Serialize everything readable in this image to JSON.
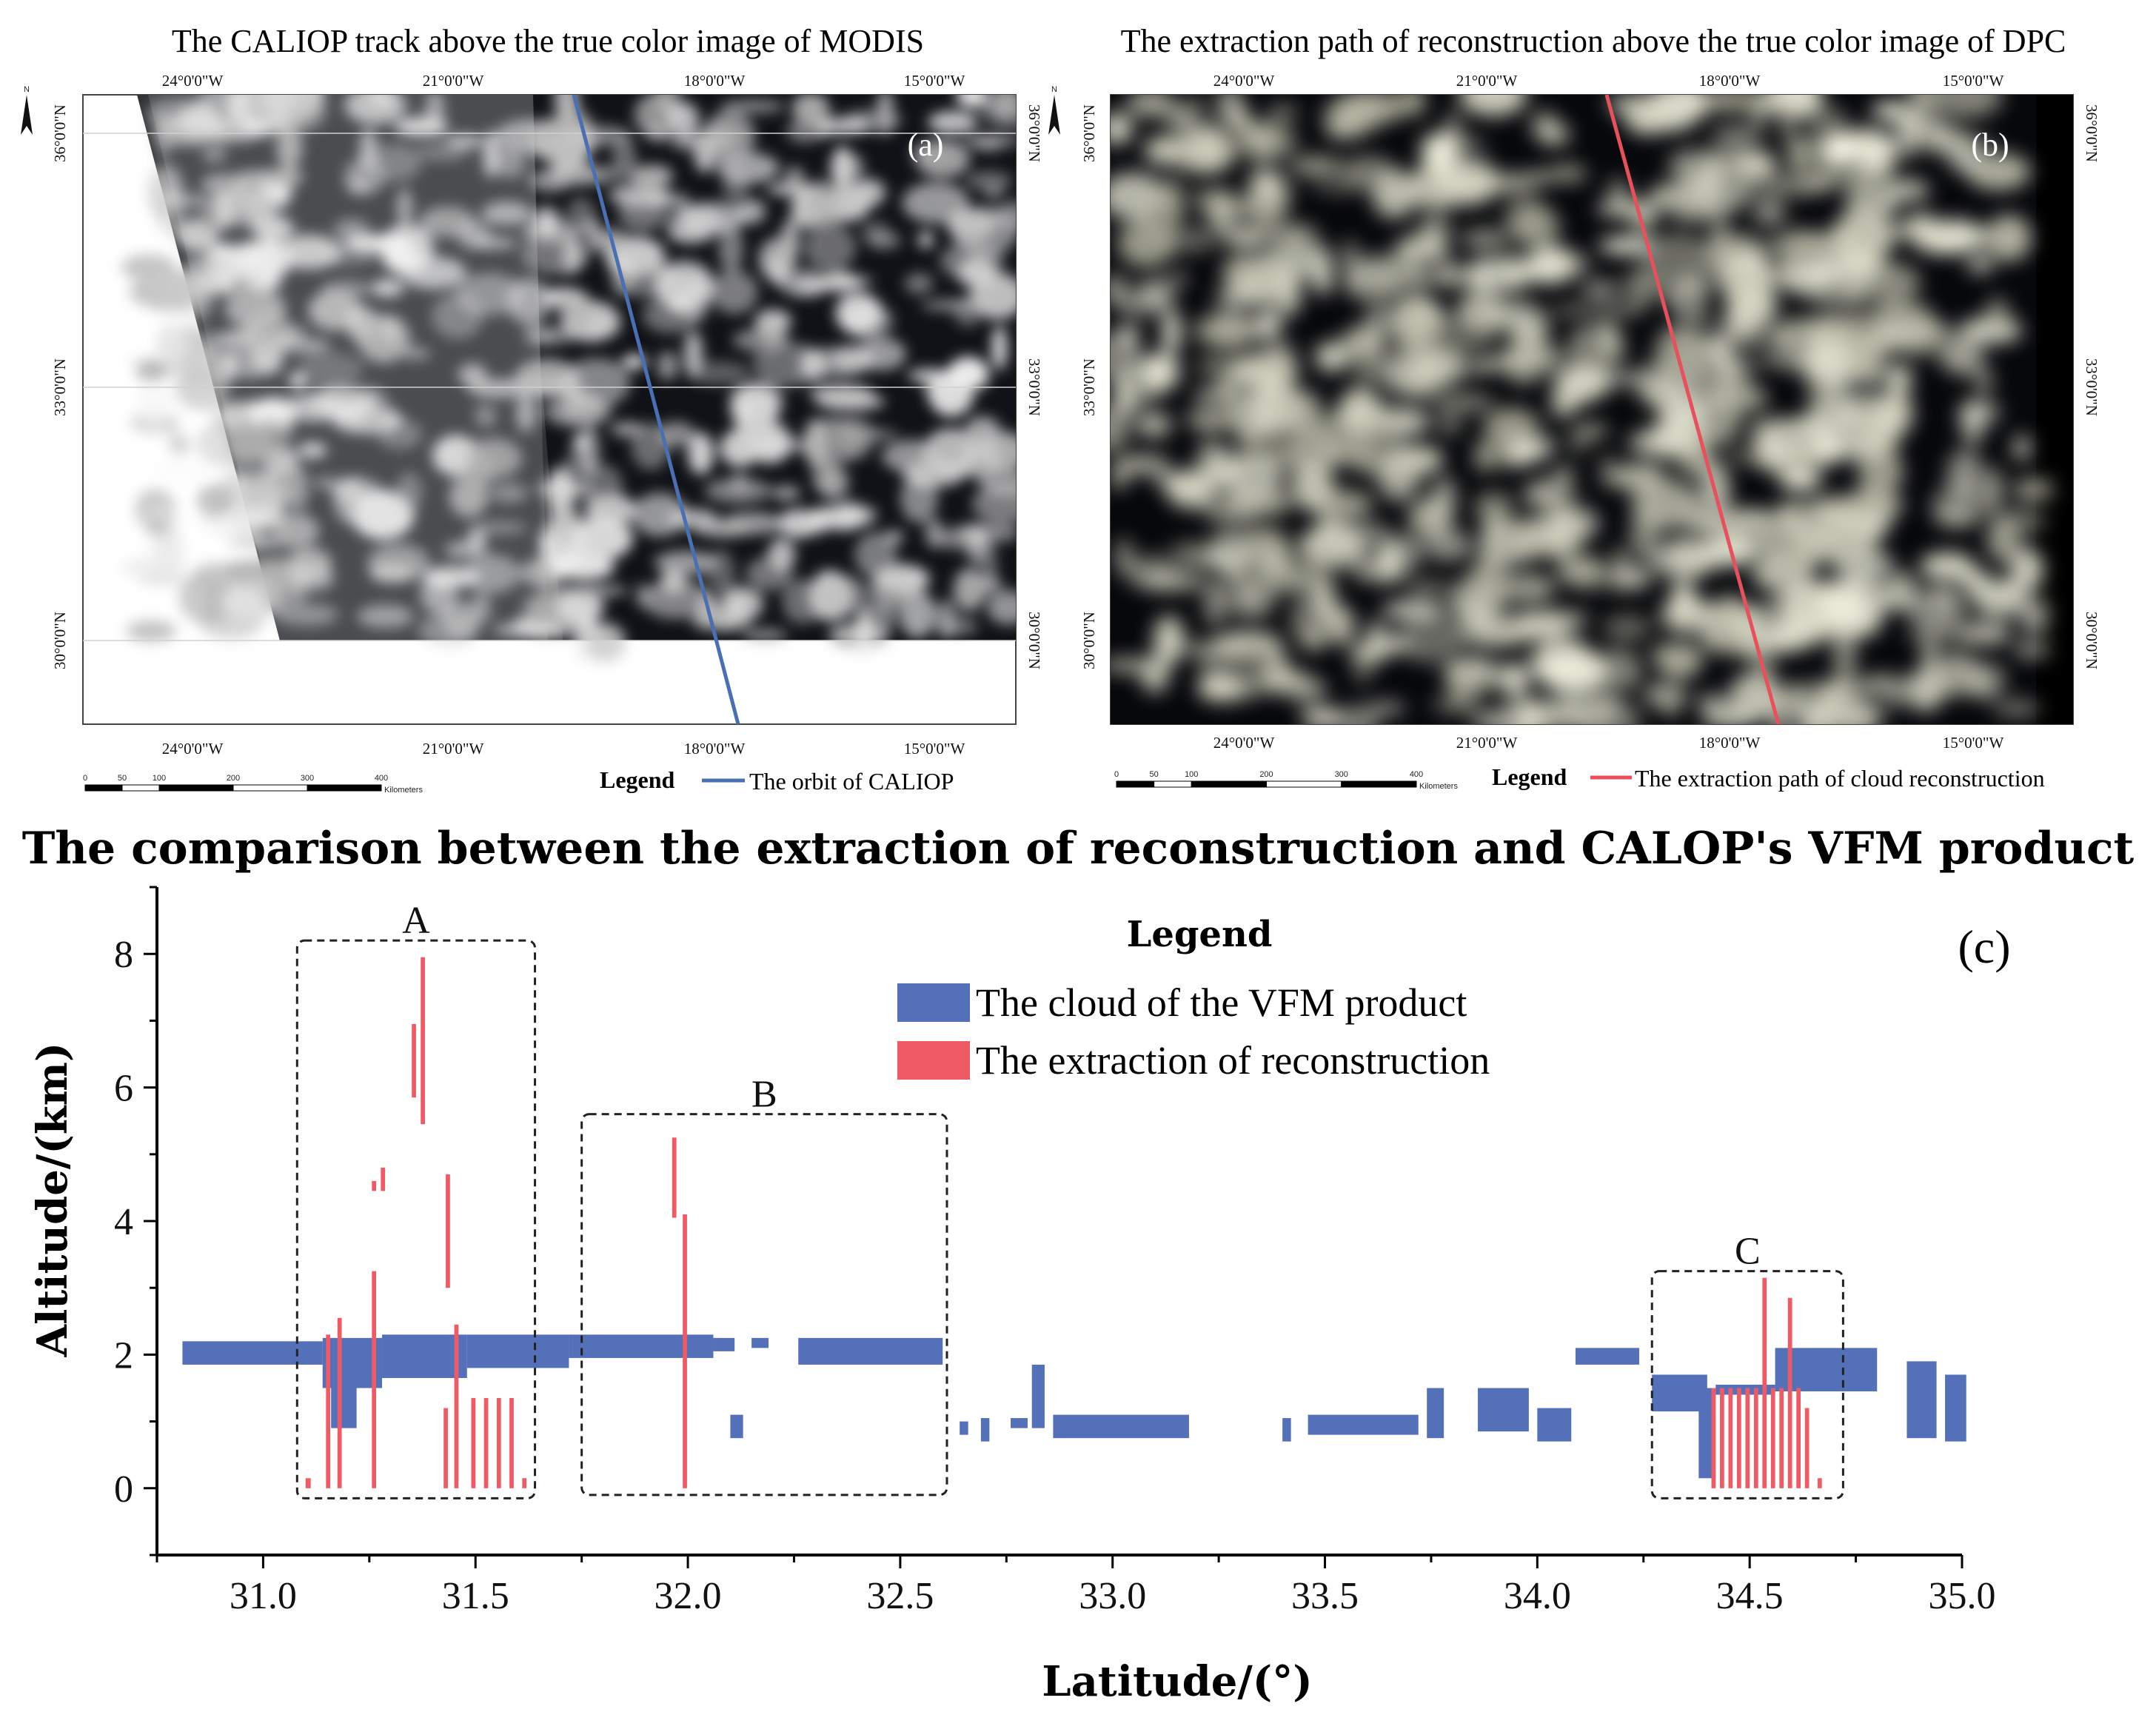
{
  "panel_a": {
    "title": "The CALIOP track above the true color image of MODIS",
    "label": "(a)",
    "lon_ticks": [
      "24°0'0\"W",
      "21°0'0\"W",
      "18°0'0\"W",
      "15°0'0\"W"
    ],
    "lat_ticks": [
      "36°0'0\"N",
      "33°0'0\"N",
      "30°0'0\"N"
    ],
    "north_label": "N",
    "scale_ticks": [
      "0",
      "50",
      "100",
      "200",
      "300",
      "400"
    ],
    "scale_unit": "Kilometers",
    "legend_title": "Legend",
    "legend_item": "The orbit of CALIOP",
    "track_color": "#4a6fb3"
  },
  "panel_b": {
    "title": "The extraction path of reconstruction above the true color image of DPC",
    "label": "(b)",
    "lon_ticks": [
      "24°0'0\"W",
      "21°0'0\"W",
      "18°0'0\"W",
      "15°0'0\"W"
    ],
    "lat_ticks": [
      "36°0'0\"N",
      "33°0'0\"N",
      "30°0'0\"N"
    ],
    "north_label": "N",
    "scale_ticks": [
      "0",
      "50",
      "100",
      "200",
      "300",
      "400"
    ],
    "scale_unit": "Kilometers",
    "legend_title": "Legend",
    "legend_item": "The extraction path of cloud reconstruction",
    "track_color": "#e8505b"
  },
  "chart_data": {
    "type": "bar",
    "title": "The comparison between the extraction of reconstruction and CALOP's VFM product",
    "panel_label": "(c)",
    "xlabel": "Latitude/(°)",
    "ylabel": "Altitude/(km)",
    "xlim": [
      30.75,
      35.0
    ],
    "ylim": [
      -1,
      9
    ],
    "xticks": [
      "31.0",
      "31.5",
      "32.0",
      "32.5",
      "33.0",
      "33.5",
      "34.0",
      "34.5",
      "35.0"
    ],
    "xtick_values": [
      31.0,
      31.5,
      32.0,
      32.5,
      33.0,
      33.5,
      34.0,
      34.5,
      35.0
    ],
    "yticks": [
      "0",
      "2",
      "4",
      "6",
      "8"
    ],
    "ytick_values": [
      0,
      2,
      4,
      6,
      8
    ],
    "legend_title": "Legend",
    "series": [
      {
        "name": "The cloud of the VFM product",
        "color": "#5470b8",
        "segments": [
          {
            "x0": 30.81,
            "x1": 31.14,
            "y0": 1.85,
            "y1": 2.2
          },
          {
            "x0": 31.14,
            "x1": 31.28,
            "y0": 1.5,
            "y1": 2.25
          },
          {
            "x0": 31.16,
            "x1": 31.22,
            "y0": 0.9,
            "y1": 1.5
          },
          {
            "x0": 31.28,
            "x1": 31.48,
            "y0": 1.65,
            "y1": 2.3
          },
          {
            "x0": 31.48,
            "x1": 31.72,
            "y0": 1.8,
            "y1": 2.3
          },
          {
            "x0": 31.72,
            "x1": 32.06,
            "y0": 1.95,
            "y1": 2.3
          },
          {
            "x0": 32.06,
            "x1": 32.11,
            "y0": 2.05,
            "y1": 2.25
          },
          {
            "x0": 32.15,
            "x1": 32.19,
            "y0": 2.1,
            "y1": 2.25
          },
          {
            "x0": 32.26,
            "x1": 32.6,
            "y0": 1.85,
            "y1": 2.25
          },
          {
            "x0": 32.1,
            "x1": 32.13,
            "y0": 0.75,
            "y1": 1.1
          },
          {
            "x0": 32.64,
            "x1": 32.66,
            "y0": 0.8,
            "y1": 1.0
          },
          {
            "x0": 32.69,
            "x1": 32.71,
            "y0": 0.7,
            "y1": 1.05
          },
          {
            "x0": 32.76,
            "x1": 32.8,
            "y0": 0.9,
            "y1": 1.05
          },
          {
            "x0": 32.81,
            "x1": 32.84,
            "y0": 0.9,
            "y1": 1.85
          },
          {
            "x0": 32.86,
            "x1": 33.18,
            "y0": 0.75,
            "y1": 1.1
          },
          {
            "x0": 33.4,
            "x1": 33.42,
            "y0": 0.7,
            "y1": 1.05
          },
          {
            "x0": 33.46,
            "x1": 33.72,
            "y0": 0.8,
            "y1": 1.1
          },
          {
            "x0": 33.74,
            "x1": 33.78,
            "y0": 0.75,
            "y1": 1.5
          },
          {
            "x0": 33.86,
            "x1": 33.98,
            "y0": 0.85,
            "y1": 1.5
          },
          {
            "x0": 34.0,
            "x1": 34.08,
            "y0": 0.7,
            "y1": 1.2
          },
          {
            "x0": 34.09,
            "x1": 34.24,
            "y0": 1.85,
            "y1": 2.1
          },
          {
            "x0": 34.27,
            "x1": 34.4,
            "y0": 1.15,
            "y1": 1.7
          },
          {
            "x0": 34.38,
            "x1": 34.42,
            "y0": 0.15,
            "y1": 1.5
          },
          {
            "x0": 34.42,
            "x1": 34.56,
            "y0": 1.4,
            "y1": 1.55
          },
          {
            "x0": 34.56,
            "x1": 34.8,
            "y0": 1.45,
            "y1": 2.1
          },
          {
            "x0": 34.87,
            "x1": 34.94,
            "y0": 0.75,
            "y1": 1.9
          },
          {
            "x0": 34.96,
            "x1": 35.01,
            "y0": 0.7,
            "y1": 1.7
          }
        ]
      },
      {
        "name": "The extraction of reconstruction",
        "color": "#f05a65",
        "segments": [
          {
            "x0": 31.1,
            "x1": 31.112,
            "y0": 0.0,
            "y1": 0.15
          },
          {
            "x0": 31.148,
            "x1": 31.158,
            "y0": 0.0,
            "y1": 2.3
          },
          {
            "x0": 31.175,
            "x1": 31.185,
            "y0": 0.0,
            "y1": 2.55
          },
          {
            "x0": 31.256,
            "x1": 31.266,
            "y0": 0.0,
            "y1": 3.25
          },
          {
            "x0": 31.256,
            "x1": 31.266,
            "y0": 4.45,
            "y1": 4.6
          },
          {
            "x0": 31.277,
            "x1": 31.287,
            "y0": 4.45,
            "y1": 4.8
          },
          {
            "x0": 31.35,
            "x1": 31.36,
            "y0": 5.85,
            "y1": 6.95
          },
          {
            "x0": 31.371,
            "x1": 31.381,
            "y0": 5.45,
            "y1": 7.95
          },
          {
            "x0": 31.43,
            "x1": 31.44,
            "y0": 3.0,
            "y1": 4.7
          },
          {
            "x0": 31.425,
            "x1": 31.435,
            "y0": 0.0,
            "y1": 1.2
          },
          {
            "x0": 31.45,
            "x1": 31.46,
            "y0": 0.0,
            "y1": 2.45
          },
          {
            "x0": 31.49,
            "x1": 31.5,
            "y0": 0.0,
            "y1": 1.35
          },
          {
            "x0": 31.52,
            "x1": 31.53,
            "y0": 0.0,
            "y1": 1.35
          },
          {
            "x0": 31.55,
            "x1": 31.56,
            "y0": 0.0,
            "y1": 1.35
          },
          {
            "x0": 31.58,
            "x1": 31.59,
            "y0": 0.0,
            "y1": 1.35
          },
          {
            "x0": 31.61,
            "x1": 31.62,
            "y0": 0.0,
            "y1": 0.15
          },
          {
            "x0": 31.963,
            "x1": 31.973,
            "y0": 4.05,
            "y1": 5.25
          },
          {
            "x0": 31.988,
            "x1": 31.998,
            "y0": 0.0,
            "y1": 4.1
          },
          {
            "x0": 34.41,
            "x1": 34.42,
            "y0": 0.0,
            "y1": 1.5
          },
          {
            "x0": 34.43,
            "x1": 34.44,
            "y0": 0.0,
            "y1": 1.5
          },
          {
            "x0": 34.45,
            "x1": 34.46,
            "y0": 0.0,
            "y1": 1.5
          },
          {
            "x0": 34.47,
            "x1": 34.48,
            "y0": 0.0,
            "y1": 1.5
          },
          {
            "x0": 34.49,
            "x1": 34.5,
            "y0": 0.0,
            "y1": 1.5
          },
          {
            "x0": 34.51,
            "x1": 34.52,
            "y0": 0.0,
            "y1": 1.5
          },
          {
            "x0": 34.53,
            "x1": 34.54,
            "y0": 0.0,
            "y1": 3.15
          },
          {
            "x0": 34.55,
            "x1": 34.56,
            "y0": 0.0,
            "y1": 1.5
          },
          {
            "x0": 34.57,
            "x1": 34.58,
            "y0": 0.0,
            "y1": 1.5
          },
          {
            "x0": 34.59,
            "x1": 34.6,
            "y0": 0.0,
            "y1": 2.85
          },
          {
            "x0": 34.61,
            "x1": 34.62,
            "y0": 0.0,
            "y1": 1.5
          },
          {
            "x0": 34.63,
            "x1": 34.64,
            "y0": 0.0,
            "y1": 1.2
          },
          {
            "x0": 34.66,
            "x1": 34.67,
            "y0": 0.0,
            "y1": 0.15
          }
        ]
      }
    ],
    "annotations": [
      {
        "label": "A",
        "x0": 31.08,
        "x1": 31.64,
        "y0": -0.15,
        "y1": 8.2
      },
      {
        "label": "B",
        "x0": 31.75,
        "x1": 32.61,
        "y0": -0.1,
        "y1": 5.6
      },
      {
        "label": "C",
        "x0": 34.27,
        "x1": 34.72,
        "y0": -0.15,
        "y1": 3.25
      }
    ]
  }
}
